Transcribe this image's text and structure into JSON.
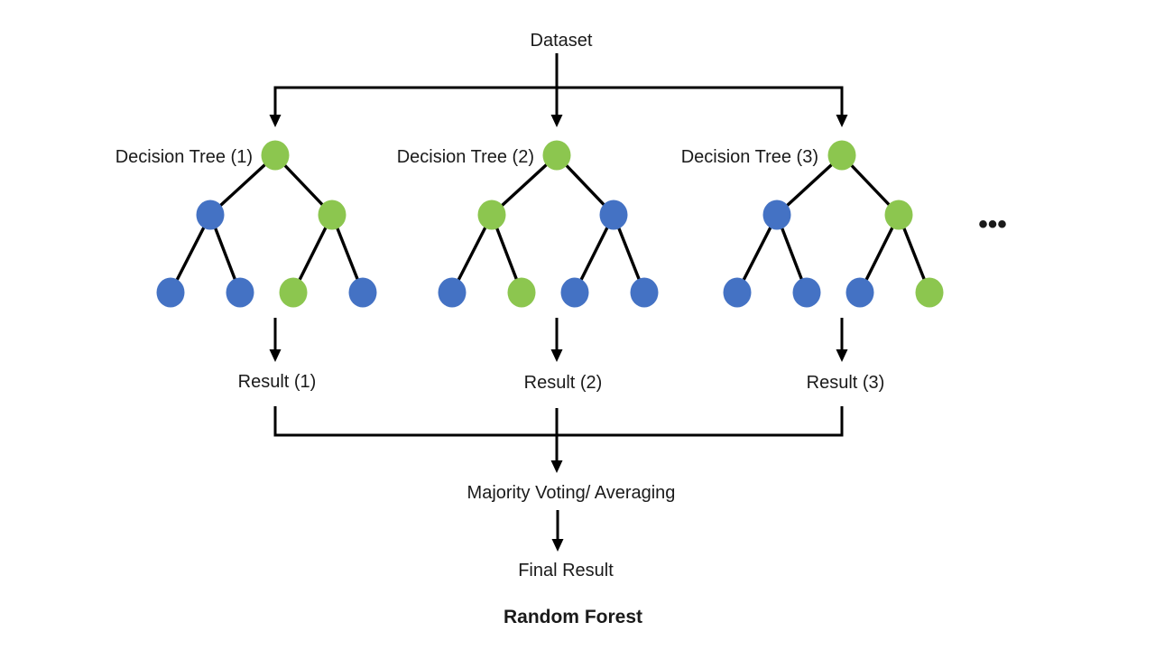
{
  "diagram": {
    "dataset_label": "Dataset",
    "majority_label": "Majority Voting/ Averaging",
    "final_label": "Final Result",
    "title": "Random Forest",
    "ellipsis": "•••",
    "colors": {
      "green": "#8CC64F",
      "blue": "#4472C4",
      "line": "#000000",
      "text": "#1a1a1a"
    },
    "trees": [
      {
        "label": "Decision Tree (1)",
        "result_label": "Result (1)",
        "nodes": [
          "green",
          "blue",
          "green",
          "blue",
          "blue",
          "green",
          "blue"
        ]
      },
      {
        "label": "Decision Tree (2)",
        "result_label": "Result (2)",
        "nodes": [
          "green",
          "green",
          "blue",
          "blue",
          "green",
          "blue",
          "blue"
        ]
      },
      {
        "label": "Decision Tree (3)",
        "result_label": "Result (3)",
        "nodes": [
          "green",
          "blue",
          "green",
          "blue",
          "blue",
          "blue",
          "green"
        ]
      }
    ]
  }
}
